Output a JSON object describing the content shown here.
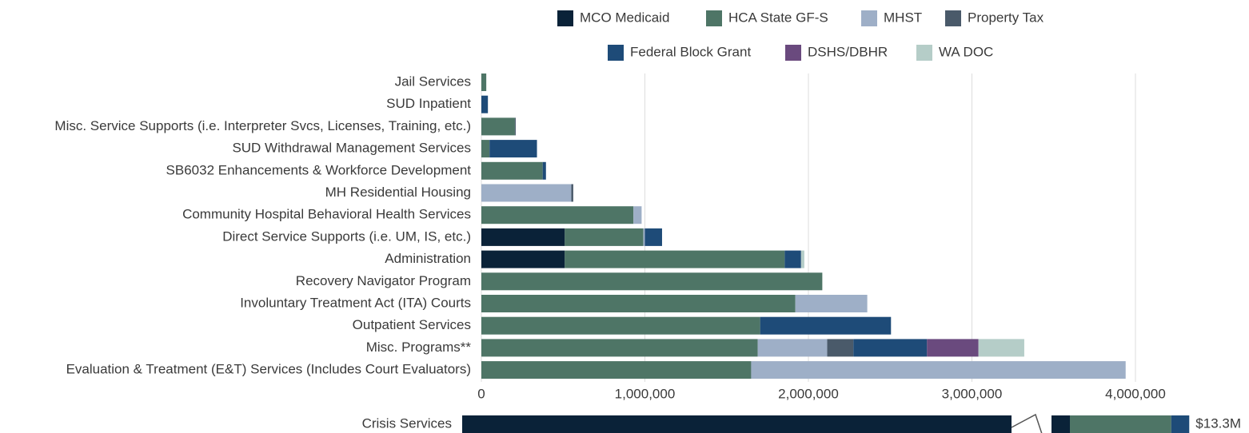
{
  "chart_data": [
    {
      "type": "bar",
      "orientation": "horizontal",
      "stacked": true,
      "categories": [
        "Jail Services",
        "SUD Inpatient",
        "Misc. Service Supports (i.e. Interpreter Svcs, Licenses, Training, etc.)",
        "SUD Withdrawal Management Services",
        "SB6032 Enhancements & Workforce Development",
        "MH Residential Housing",
        "Community Hospital Behavioral Health Services",
        "Direct Service Supports (i.e. UM, IS, etc.)",
        "Administration",
        "Recovery Navigator Program",
        "Involuntary Treatment Act (ITA) Courts",
        "Outpatient Services",
        "Misc. Programs**",
        "Evaluation & Treatment (E&T) Services (Includes Court Evaluators)"
      ],
      "series": [
        {
          "name": "MCO Medicaid",
          "color": "#0a2238",
          "values": [
            null,
            null,
            null,
            null,
            null,
            null,
            null,
            510000,
            510000,
            null,
            null,
            null,
            null,
            null
          ]
        },
        {
          "name": "HCA State GF-S",
          "color": "#4e7566",
          "values": [
            30000,
            null,
            205000,
            50000,
            375000,
            null,
            930000,
            480000,
            1345000,
            2085000,
            1920000,
            1705000,
            1690000,
            1650000
          ]
        },
        {
          "name": "MHST",
          "color": "#9eafc7",
          "values": [
            null,
            null,
            null,
            null,
            null,
            550000,
            50000,
            10000,
            null,
            null,
            440000,
            null,
            425000,
            2290000
          ]
        },
        {
          "name": "Property Tax",
          "color": "#4a5a6a",
          "values": [
            null,
            null,
            5000,
            null,
            null,
            12000,
            null,
            null,
            null,
            null,
            null,
            null,
            160000,
            null
          ]
        },
        {
          "name": "Federal Block Grant",
          "color": "#1e4b78",
          "values": [
            null,
            40000,
            null,
            290000,
            20000,
            null,
            null,
            105000,
            100000,
            null,
            null,
            800000,
            450000,
            null
          ]
        },
        {
          "name": "DSHS/DBHR",
          "color": "#6a4a7e",
          "values": [
            null,
            null,
            null,
            null,
            null,
            null,
            null,
            null,
            null,
            null,
            null,
            null,
            315000,
            null
          ]
        },
        {
          "name": "WA DOC",
          "color": "#b5cdc8",
          "values": [
            null,
            null,
            null,
            null,
            null,
            null,
            null,
            null,
            20000,
            null,
            null,
            null,
            280000,
            null
          ]
        }
      ],
      "xlim": [
        0,
        4500000
      ],
      "xticks": [
        0,
        {
          "value": 1000000,
          "label": "1,000,000"
        },
        {
          "value": 2000000,
          "label": "2,000,000"
        },
        {
          "value": 3000000,
          "label": "3,000,000"
        },
        {
          "value": 4000000,
          "label": "4,000,000"
        }
      ],
      "grid": true
    },
    {
      "type": "bar",
      "orientation": "horizontal",
      "stacked": true,
      "axis_break": true,
      "categories": [
        "Crisis Services"
      ],
      "series": [
        {
          "name": "MCO Medicaid",
          "color": "#0a2238",
          "values": [
            12570000
          ]
        },
        {
          "name": "HCA State GF-S",
          "color": "#4e7566",
          "values": [
            620000
          ]
        },
        {
          "name": "Federal Block Grant",
          "color": "#1e4b78",
          "values": [
            110000
          ]
        }
      ],
      "total": 13300000,
      "total_label": "$13.3M"
    }
  ]
}
